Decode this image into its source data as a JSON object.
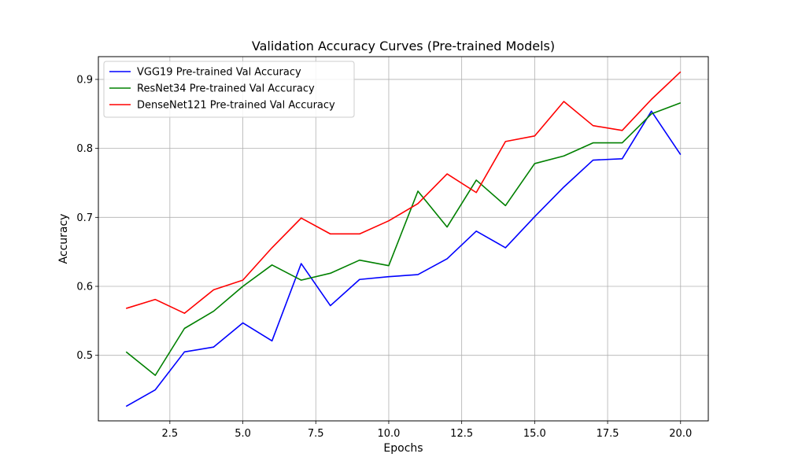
{
  "chart_data": {
    "type": "line",
    "title": "Validation Accuracy Curves (Pre-trained Models)",
    "xlabel": "Epochs",
    "ylabel": "Accuracy",
    "xlim": [
      0.05,
      20.95
    ],
    "ylim": [
      0.405,
      0.933
    ],
    "xticks": [
      2.5,
      5.0,
      7.5,
      10.0,
      12.5,
      15.0,
      17.5,
      20.0
    ],
    "xtick_labels": [
      "2.5",
      "5.0",
      "7.5",
      "10.0",
      "12.5",
      "15.0",
      "17.5",
      "20.0"
    ],
    "yticks": [
      0.5,
      0.6,
      0.7,
      0.8,
      0.9
    ],
    "ytick_labels": [
      "0.5",
      "0.6",
      "0.7",
      "0.8",
      "0.9"
    ],
    "grid": true,
    "legend_position": "top-left",
    "x": [
      1,
      2,
      3,
      4,
      5,
      6,
      7,
      8,
      9,
      10,
      11,
      12,
      13,
      14,
      15,
      16,
      17,
      18,
      19,
      20
    ],
    "series": [
      {
        "name": "VGG19 Pre-trained Val Accuracy",
        "color": "#0000ff",
        "values": [
          0.426,
          0.45,
          0.505,
          0.512,
          0.547,
          0.521,
          0.633,
          0.572,
          0.61,
          0.614,
          0.617,
          0.64,
          0.68,
          0.656,
          0.701,
          0.744,
          0.783,
          0.785,
          0.854,
          0.791
        ]
      },
      {
        "name": "ResNet34 Pre-trained Val Accuracy",
        "color": "#008000",
        "values": [
          0.505,
          0.471,
          0.539,
          0.564,
          0.6,
          0.631,
          0.609,
          0.619,
          0.638,
          0.63,
          0.738,
          0.686,
          0.754,
          0.717,
          0.778,
          0.789,
          0.808,
          0.808,
          0.85,
          0.866
        ]
      },
      {
        "name": "DenseNet121 Pre-trained Val Accuracy",
        "color": "#ff0000",
        "values": [
          0.568,
          0.581,
          0.561,
          0.595,
          0.609,
          0.656,
          0.699,
          0.676,
          0.676,
          0.695,
          0.72,
          0.763,
          0.736,
          0.81,
          0.818,
          0.868,
          0.833,
          0.826,
          0.871,
          0.911
        ]
      }
    ]
  }
}
